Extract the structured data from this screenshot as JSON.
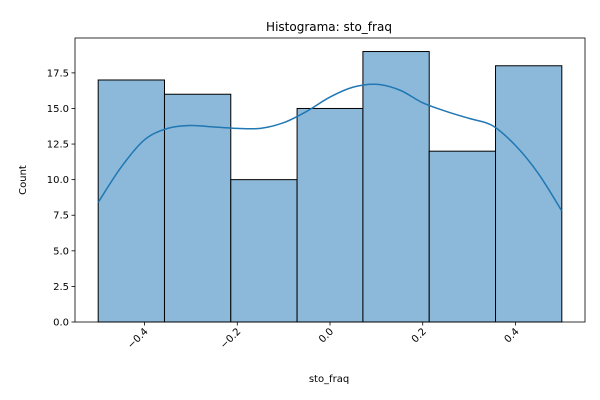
{
  "chart_data": {
    "type": "bar",
    "title": "Histograma: sto_fraq",
    "xlabel": "sto_fraq",
    "ylabel": "Count",
    "bin_edges": [
      -0.5,
      -0.357,
      -0.214,
      -0.071,
      0.071,
      0.214,
      0.357,
      0.5
    ],
    "values": [
      17,
      16,
      10,
      15,
      19,
      12,
      18
    ],
    "xlim": [
      -0.55,
      0.55
    ],
    "ylim": [
      0,
      19.95
    ],
    "x_ticks": [
      -0.4,
      -0.2,
      0.0,
      0.2,
      0.4
    ],
    "x_tick_labels": [
      "−0.4",
      "−0.2",
      "0.0",
      "0.2",
      "0.4"
    ],
    "y_ticks": [
      0,
      2.5,
      5,
      7.5,
      10,
      12.5,
      15,
      17.5
    ],
    "y_tick_labels": [
      "0.0",
      "2.5",
      "5.0",
      "7.5",
      "10.0",
      "12.5",
      "15.0",
      "17.5"
    ],
    "kde": {
      "x": [
        -0.5,
        -0.45,
        -0.4,
        -0.35,
        -0.3,
        -0.25,
        -0.2,
        -0.15,
        -0.1,
        -0.05,
        0.0,
        0.05,
        0.1,
        0.15,
        0.2,
        0.25,
        0.3,
        0.35,
        0.4,
        0.45,
        0.5
      ],
      "y": [
        8.4,
        10.9,
        12.8,
        13.6,
        13.8,
        13.7,
        13.6,
        13.6,
        14.0,
        14.8,
        15.8,
        16.5,
        16.7,
        16.3,
        15.4,
        14.8,
        14.3,
        13.8,
        12.4,
        10.4,
        7.8
      ]
    },
    "grid": false,
    "legend": "none",
    "bar_color": "#8cb9d9",
    "bar_edge_color": "#000000",
    "kde_color": "#1f77b4"
  }
}
